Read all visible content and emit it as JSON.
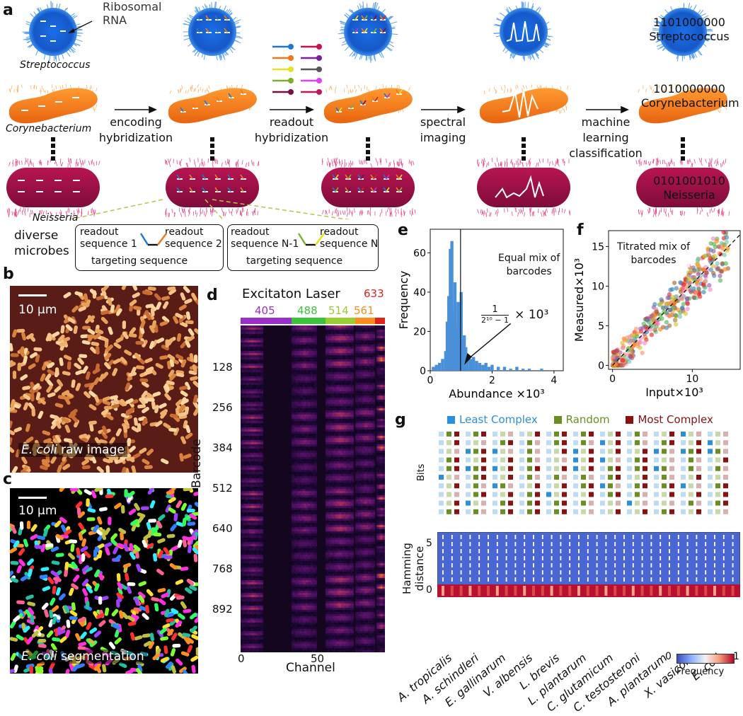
{
  "panels": {
    "a": {
      "label": "a",
      "ribosomal_label": "Ribosomal\nRNA",
      "organisms": [
        "Streptococcus",
        "Corynebacterium",
        "Neisseria"
      ],
      "steps": [
        "encoding\nhybridization",
        "readout\nhybridization",
        "spectral\nimaging",
        "machine\nlearning\nclassification"
      ],
      "barcodes": [
        {
          "code": "1101000000",
          "name": "Streptococcus"
        },
        {
          "code": "1010000000",
          "name": "Corynebacterium"
        },
        {
          "code": "0101001010",
          "name": "Neisseria"
        }
      ],
      "diverse_label": "diverse\nmicrobes",
      "probe1": {
        "left": "readout\nsequence 1",
        "right": "readout\nsequence 2",
        "bottom": "targeting sequence"
      },
      "probe2": {
        "left": "readout\nsequence N-1",
        "right": "readout\nsequence N",
        "bottom": "targeting sequence"
      },
      "colors": {
        "cell_blue": "#1f6fd8",
        "cell_orange": "#f07818",
        "cell_crimson": "#a0124a"
      }
    },
    "b": {
      "label": "b",
      "scale": "10 μm",
      "caption_italic": "E. coli",
      "caption_rest": " raw image"
    },
    "c": {
      "label": "c",
      "scale": "10 μm",
      "caption_italic": "E. coli",
      "caption_rest": " segmentation"
    },
    "d": {
      "label": "d",
      "title": "Excitaton Laser",
      "lasers": [
        {
          "nm": "405",
          "color": "#9b30c9"
        },
        {
          "nm": "488",
          "color": "#3cc33c"
        },
        {
          "nm": "514",
          "color": "#9acd32"
        },
        {
          "nm": "561",
          "color": "#ff8c1a"
        },
        {
          "nm": "633",
          "color": "#e0221c"
        }
      ],
      "ylabel": "Barcode",
      "yticks": [
        "128",
        "256",
        "384",
        "512",
        "640",
        "768",
        "892"
      ],
      "xlabel": "Channel",
      "xticks": [
        "0",
        "50"
      ]
    },
    "e": {
      "label": "e",
      "annotation": "Equal mix of\nbarcodes",
      "fraction_num": "1",
      "fraction_den": "2¹⁰ − 1",
      "fraction_mult": "× 10³"
    },
    "f": {
      "label": "f",
      "annotation": "Titrated mix of\nbarcodes"
    },
    "g": {
      "label": "g",
      "legend": [
        {
          "name": "Least Complex",
          "color": "#2b8fdc"
        },
        {
          "name": "Random",
          "color": "#6b8e23"
        },
        {
          "name": "Most Complex",
          "color": "#8b1010"
        }
      ],
      "bits_label": "Bits",
      "hamming_label": "Hamming\ndistance",
      "hamming_ticks": [
        "5",
        "0"
      ],
      "species": [
        "A. tropicalis",
        "A. schindleri",
        "E. gallinarum",
        "V. albensis",
        "L. brevis",
        "L. plantarum",
        "C. glutamicum",
        "C. testosteroni",
        "A. plantarum",
        "X. vasicola",
        "E. coli"
      ],
      "colorbar": {
        "min": "0",
        "max": "1",
        "label": "Frequency"
      }
    }
  },
  "chart_data": [
    {
      "type": "bar",
      "title": "",
      "xlabel": "Abundance ×10³",
      "ylabel": "Frequency",
      "xlim": [
        0,
        4.3
      ],
      "ylim": [
        0,
        72
      ],
      "xticks": [
        "0",
        "2",
        "4"
      ],
      "yticks": [
        "0",
        "20",
        "40",
        "60"
      ],
      "vline": 0.98,
      "x": [
        0.1,
        0.2,
        0.3,
        0.4,
        0.5,
        0.55,
        0.6,
        0.65,
        0.7,
        0.75,
        0.8,
        0.85,
        0.9,
        0.95,
        1.0,
        1.05,
        1.1,
        1.15,
        1.2,
        1.3,
        1.4,
        1.5,
        1.6,
        1.7,
        1.8,
        1.9,
        2.0,
        2.2,
        2.4,
        2.6,
        2.8,
        3.0,
        3.2,
        3.4,
        3.6,
        3.8
      ],
      "values": [
        2,
        3,
        4,
        6,
        10,
        25,
        38,
        62,
        66,
        30,
        45,
        22,
        35,
        25,
        40,
        15,
        18,
        12,
        8,
        6,
        7,
        5,
        4,
        3,
        4,
        2,
        3,
        2,
        2,
        1,
        2,
        1,
        1,
        0,
        1,
        0
      ]
    },
    {
      "type": "scatter",
      "title": "",
      "xlabel": "Input×10³",
      "ylabel": "Measured×10³",
      "xlim": [
        -0.5,
        16
      ],
      "ylim": [
        -0.5,
        17
      ],
      "xticks": [
        "0",
        "10"
      ],
      "yticks": [
        "0",
        "5",
        "10",
        "15"
      ],
      "diagonal": true,
      "n_points": 420
    }
  ]
}
